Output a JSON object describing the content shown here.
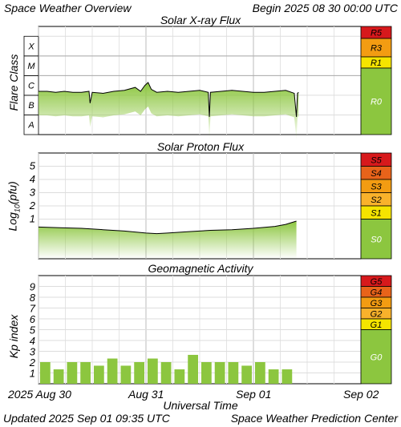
{
  "header": {
    "title": "Space Weather Overview",
    "begin_label": "Begin",
    "begin_time": "2025 08 30 00:00 UTC"
  },
  "footer": {
    "updated_label": "Updated",
    "updated_time": "2025 Sep 01 09:35 UTC",
    "source": "Space Weather Prediction Center"
  },
  "xaxis": {
    "label": "Universal Time",
    "ticks": [
      "2025 Aug 30",
      "Aug 31",
      "Sep 01",
      "Sep 02"
    ]
  },
  "colors": {
    "series_green": "#8cc63f",
    "r0": "#8cc63f",
    "r1": "#f5e400",
    "r2": "#f9b22b",
    "r3": "#f39c12",
    "r4": "#e8631a",
    "r5": "#d7191c",
    "grid": "#dddddd"
  },
  "chart_data": [
    {
      "type": "line",
      "title": "Solar X-ray Flux",
      "ylabel": "Flare Class",
      "ytick_labels": [
        "A",
        "B",
        "C",
        "M",
        "X"
      ],
      "scale_labels": [
        "R5",
        "R3",
        "R1",
        "R0"
      ],
      "scale_colors": [
        "#d7191c",
        "#f39c12",
        "#f5e400",
        "#8cc63f"
      ],
      "xlim_days": [
        0,
        3
      ],
      "ylim": [
        -8,
        -2.5
      ],
      "x": [
        0,
        0.08,
        0.16,
        0.24,
        0.32,
        0.4,
        0.47,
        0.48,
        0.5,
        0.6,
        0.7,
        0.8,
        0.9,
        0.95,
        0.99,
        1.02,
        1.05,
        1.1,
        1.2,
        1.3,
        1.4,
        1.5,
        1.58,
        1.59,
        1.6,
        1.7,
        1.8,
        1.9,
        2.0,
        2.1,
        2.2,
        2.3,
        2.38,
        2.4,
        2.41,
        2.42
      ],
      "y": [
        -5.8,
        -5.8,
        -5.85,
        -5.8,
        -5.85,
        -5.85,
        -5.8,
        -6.4,
        -5.85,
        -5.9,
        -5.8,
        -5.75,
        -5.6,
        -5.8,
        -5.5,
        -5.35,
        -5.7,
        -5.85,
        -5.8,
        -5.85,
        -5.8,
        -5.75,
        -5.85,
        -7.1,
        -5.85,
        -5.8,
        -5.75,
        -5.8,
        -5.85,
        -5.85,
        -5.8,
        -5.75,
        -5.9,
        -7.1,
        -5.9,
        -5.85
      ]
    },
    {
      "type": "line",
      "title": "Solar Proton Flux",
      "ylabel": "Log10(pfu)",
      "ytick_labels": [
        "1",
        "2",
        "3",
        "4",
        "5"
      ],
      "scale_labels": [
        "S5",
        "S4",
        "S3",
        "S2",
        "S1",
        "S0"
      ],
      "scale_colors": [
        "#d7191c",
        "#e8631a",
        "#f39c12",
        "#f9b22b",
        "#f5e400",
        "#8cc63f"
      ],
      "xlim_days": [
        0,
        3
      ],
      "ylim": [
        -2,
        6
      ],
      "x": [
        0,
        0.2,
        0.4,
        0.6,
        0.8,
        1.0,
        1.1,
        1.2,
        1.4,
        1.6,
        1.8,
        2.0,
        2.2,
        2.3,
        2.4
      ],
      "y": [
        0.4,
        0.35,
        0.3,
        0.2,
        0.1,
        -0.05,
        -0.1,
        -0.05,
        0.05,
        0.15,
        0.2,
        0.3,
        0.45,
        0.6,
        0.85
      ]
    },
    {
      "type": "bar",
      "title": "Geomagnetic Activity",
      "ylabel": "Kp index",
      "ytick_labels": [
        "1",
        "2",
        "3",
        "4",
        "5",
        "6",
        "7",
        "8",
        "9"
      ],
      "scale_labels": [
        "G5",
        "G4",
        "G3",
        "G2",
        "G1",
        "G0"
      ],
      "scale_colors": [
        "#d7191c",
        "#e8631a",
        "#f39c12",
        "#f9b22b",
        "#f5e400",
        "#8cc63f"
      ],
      "ylim": [
        0,
        10
      ],
      "bar_width_hours": 3,
      "values": [
        2.0,
        1.33,
        2.0,
        2.0,
        1.67,
        2.33,
        1.67,
        2.0,
        2.33,
        2.0,
        1.33,
        2.67,
        2.0,
        2.0,
        2.0,
        1.67,
        2.0,
        1.33,
        1.33
      ]
    }
  ]
}
